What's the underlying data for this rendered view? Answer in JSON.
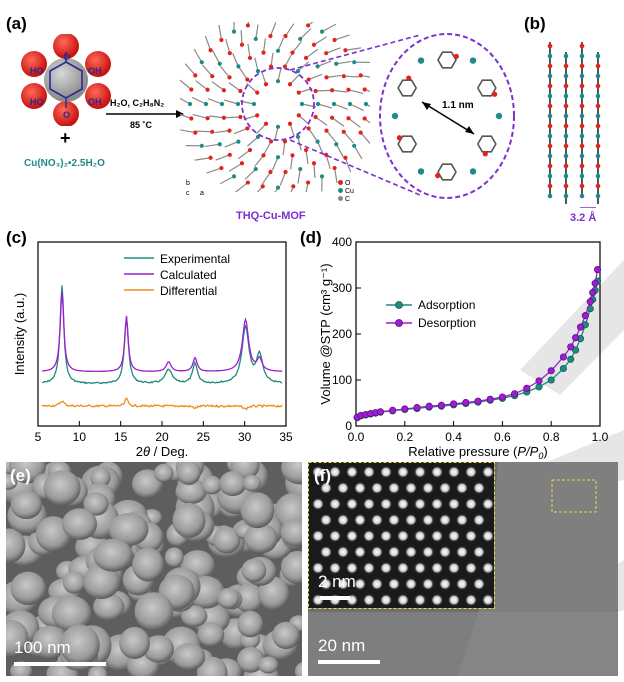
{
  "panel_a": {
    "label": "(a)",
    "ligand_oh": [
      "HO",
      "OH",
      "HO",
      "OH"
    ],
    "ligand_o": [
      "O",
      "O"
    ],
    "plus": "+",
    "salt": "Cu(NO₃)₂•2.5H₂O",
    "conditions_top": "H₂O, C₂H₈N₂",
    "conditions_bottom": "85 ˚C",
    "pore_size": "1.1 nm",
    "mof_name": "THQ-Cu-MOF",
    "axes": [
      "b",
      "c",
      "a"
    ],
    "legend": [
      "O",
      "Cu",
      "C"
    ],
    "colors": {
      "purple": "#7b2fd0",
      "teal": "#1f8a8a",
      "oxygen": "#e0241b"
    }
  },
  "panel_b": {
    "label": "(b)",
    "spacing": "3.2 Å"
  },
  "panel_c": {
    "label": "(c)",
    "chart_data": {
      "type": "line",
      "xlabel_prefix": "2",
      "xlabel_theta": "θ",
      "xlabel_suffix": " / Deg.",
      "ylabel": "Intensity (a.u.)",
      "xlim": [
        5,
        35
      ],
      "xticks": [
        "5",
        "10",
        "15",
        "20",
        "25",
        "30",
        "35"
      ],
      "legend": [
        "Experimental",
        "Calculated",
        "Differential"
      ],
      "series_colors": [
        "#1f8a7e",
        "#9b1fd0",
        "#f08c1a"
      ],
      "peaks": [
        7.9,
        15.7,
        20.8,
        24.0,
        30.1,
        31.8
      ]
    }
  },
  "panel_d": {
    "label": "(d)",
    "chart_data": {
      "type": "line",
      "xlabel": "Relative pressure (",
      "xlabel_italic": "P/P",
      "xlabel_sub": "0",
      "xlabel_end": ")",
      "ylabel": "Volume @STP (cm³ g⁻¹)",
      "xlim": [
        0.0,
        1.0
      ],
      "ylim": [
        0,
        400
      ],
      "xticks": [
        "0.0",
        "0.2",
        "0.4",
        "0.6",
        "0.8",
        "1.0"
      ],
      "yticks": [
        "0",
        "100",
        "200",
        "300",
        "400"
      ],
      "series": [
        {
          "name": "Adsorption",
          "color": "#1f8a7e",
          "x": [
            0.005,
            0.02,
            0.04,
            0.06,
            0.08,
            0.1,
            0.15,
            0.2,
            0.25,
            0.3,
            0.35,
            0.4,
            0.45,
            0.5,
            0.55,
            0.6,
            0.65,
            0.7,
            0.75,
            0.8,
            0.85,
            0.88,
            0.9,
            0.92,
            0.94,
            0.96,
            0.97,
            0.98,
            0.99
          ],
          "y": [
            18,
            22,
            24,
            26,
            28,
            30,
            33,
            36,
            38,
            41,
            43,
            46,
            49,
            52,
            56,
            60,
            66,
            74,
            85,
            100,
            125,
            145,
            165,
            190,
            220,
            255,
            275,
            295,
            315
          ]
        },
        {
          "name": "Desorption",
          "color": "#9b1fd0",
          "x": [
            0.005,
            0.02,
            0.04,
            0.06,
            0.08,
            0.1,
            0.15,
            0.2,
            0.25,
            0.3,
            0.35,
            0.4,
            0.45,
            0.5,
            0.55,
            0.6,
            0.65,
            0.7,
            0.75,
            0.8,
            0.85,
            0.88,
            0.9,
            0.92,
            0.94,
            0.96,
            0.97,
            0.98,
            0.99
          ],
          "y": [
            19,
            23,
            25,
            27,
            29,
            31,
            34,
            37,
            40,
            43,
            45,
            48,
            51,
            54,
            58,
            63,
            70,
            82,
            98,
            120,
            150,
            172,
            192,
            215,
            240,
            270,
            290,
            310,
            340
          ]
        }
      ]
    }
  },
  "panel_e": {
    "label": "(e)",
    "scale": "100 nm"
  },
  "panel_f": {
    "label": "(f)",
    "scale": "20 nm",
    "inset_scale": "2 nm"
  },
  "watermark_color": "#dcdcdc"
}
